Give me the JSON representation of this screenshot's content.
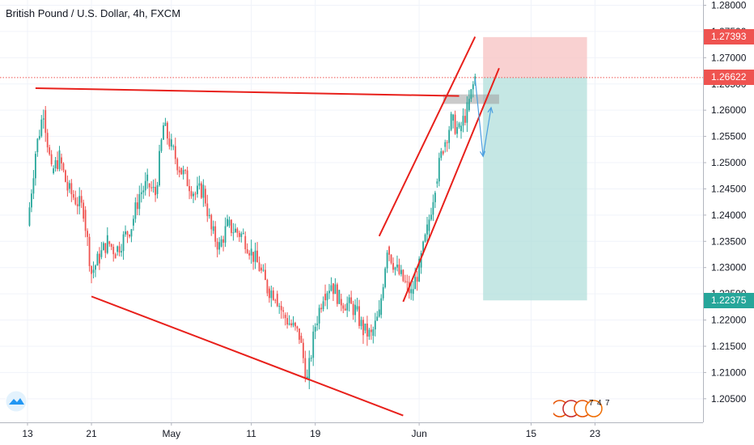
{
  "header": {
    "title": "British Pound / U.S. Dollar, 4h, FXCM"
  },
  "colors": {
    "up": "#26a69a",
    "down": "#ef5350",
    "trendline": "#e8201b",
    "target_zone": "#b2dfdb",
    "stop_zone": "#f8c6c6",
    "arrow": "#4a9fe0",
    "current_price": "#ef5350",
    "target_price": "#26a69a"
  },
  "price_labels": {
    "stop": "1.27393",
    "current": "1.26622",
    "target": "1.22375"
  },
  "icons": {
    "logo": "tradingview-cloud-icon",
    "events": "economic-events-flags-icon",
    "event_counts": [
      "7",
      "4",
      "7"
    ]
  },
  "chart_data": {
    "type": "candlestick",
    "timeframe": "4h",
    "y_axis": {
      "position": "right",
      "ylim": [
        1.2005,
        1.281
      ],
      "tick_labels": [
        "1.28000",
        "1.27500",
        "1.27000",
        "1.26500",
        "1.26000",
        "1.25500",
        "1.25000",
        "1.24500",
        "1.24000",
        "1.23500",
        "1.23000",
        "1.22500",
        "1.22000",
        "1.21500",
        "1.21000",
        "1.20500"
      ]
    },
    "x_axis": {
      "tick_labels": [
        "13",
        "21",
        "May",
        "11",
        "19",
        "Jun",
        "15",
        "23"
      ]
    },
    "close_path": [
      {
        "d": "Apr 13",
        "v": 1.238
      },
      {
        "d": "Apr 14",
        "v": 1.252
      },
      {
        "d": "Apr 15",
        "v": 1.26
      },
      {
        "d": "Apr 16",
        "v": 1.248
      },
      {
        "d": "Apr 17",
        "v": 1.251
      },
      {
        "d": "Apr 18",
        "v": 1.245
      },
      {
        "d": "Apr 20",
        "v": 1.241
      },
      {
        "d": "Apr 21",
        "v": 1.229
      },
      {
        "d": "Apr 22",
        "v": 1.232
      },
      {
        "d": "Apr 23",
        "v": 1.235
      },
      {
        "d": "Apr 24",
        "v": 1.233
      },
      {
        "d": "Apr 26",
        "v": 1.238
      },
      {
        "d": "Apr 27",
        "v": 1.244
      },
      {
        "d": "Apr 28",
        "v": 1.246
      },
      {
        "d": "Apr 29",
        "v": 1.244
      },
      {
        "d": "Apr 30",
        "v": 1.257
      },
      {
        "d": "May 1",
        "v": 1.253
      },
      {
        "d": "May 2",
        "v": 1.249
      },
      {
        "d": "May 4",
        "v": 1.244
      },
      {
        "d": "May 5",
        "v": 1.245
      },
      {
        "d": "May 6",
        "v": 1.237
      },
      {
        "d": "May 7",
        "v": 1.234
      },
      {
        "d": "May 8",
        "v": 1.238
      },
      {
        "d": "May 10",
        "v": 1.236
      },
      {
        "d": "May 11",
        "v": 1.233
      },
      {
        "d": "May 12",
        "v": 1.23
      },
      {
        "d": "May 13",
        "v": 1.226
      },
      {
        "d": "May 14",
        "v": 1.225
      },
      {
        "d": "May 15",
        "v": 1.221
      },
      {
        "d": "May 17",
        "v": 1.217
      },
      {
        "d": "May 18",
        "v": 1.2085
      },
      {
        "d": "May 19",
        "v": 1.219
      },
      {
        "d": "May 20",
        "v": 1.225
      },
      {
        "d": "May 21",
        "v": 1.227
      },
      {
        "d": "May 22",
        "v": 1.224
      },
      {
        "d": "May 24",
        "v": 1.222
      },
      {
        "d": "May 25",
        "v": 1.218
      },
      {
        "d": "May 26",
        "v": 1.217
      },
      {
        "d": "May 27",
        "v": 1.221
      },
      {
        "d": "May 28",
        "v": 1.234
      },
      {
        "d": "May 29",
        "v": 1.23
      },
      {
        "d": "May 31",
        "v": 1.225
      },
      {
        "d": "Jun 1",
        "v": 1.23
      },
      {
        "d": "Jun 2",
        "v": 1.237
      },
      {
        "d": "Jun 3",
        "v": 1.246
      },
      {
        "d": "Jun 4",
        "v": 1.253
      },
      {
        "d": "Jun 5",
        "v": 1.258
      },
      {
        "d": "Jun 6",
        "v": 1.256
      },
      {
        "d": "Jun 7",
        "v": 1.26
      },
      {
        "d": "Jun 8",
        "v": 1.2662
      }
    ],
    "drawings": {
      "resistance_line": [
        {
          "d": "Apr 14",
          "v": 1.2642
        },
        {
          "d": "Jun 6",
          "v": 1.2627
        }
      ],
      "support_line": [
        {
          "d": "Apr 21",
          "v": 1.2245
        },
        {
          "d": "May 30",
          "v": 1.2018
        }
      ],
      "channel_upper": [
        {
          "d": "May 27",
          "v": 1.236
        },
        {
          "d": "Jun 8",
          "v": 1.274
        }
      ],
      "channel_lower": [
        {
          "d": "May 30",
          "v": 1.2235
        },
        {
          "d": "Jun 11",
          "v": 1.268
        }
      ],
      "zone_box": {
        "from": "Jun 4",
        "to": "Jun 11",
        "top": 1.263,
        "bottom": 1.2612
      },
      "projection_arrows": [
        [
          {
            "d": "Jun 8",
            "v": 1.266
          },
          {
            "d": "Jun 9",
            "v": 1.2512
          }
        ],
        [
          {
            "d": "Jun 9",
            "v": 1.2512
          },
          {
            "d": "Jun 10",
            "v": 1.2605
          }
        ]
      ],
      "position": {
        "from": "Jun 9",
        "to": "Jun 22",
        "entry": 1.26622,
        "stop": 1.27393,
        "target": 1.22375
      }
    }
  }
}
